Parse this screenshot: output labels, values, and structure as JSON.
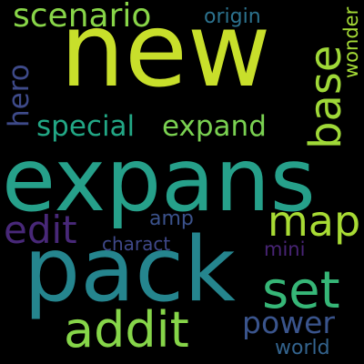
{
  "word_cloud": {
    "background": "#000000",
    "words": [
      {
        "text": "new",
        "color": "#c8df2b",
        "orientation": "horizontal"
      },
      {
        "text": "expans",
        "color": "#26a08a",
        "orientation": "horizontal"
      },
      {
        "text": "pack",
        "color": "#25858e",
        "orientation": "horizontal"
      },
      {
        "text": "base",
        "color": "#9fd838",
        "orientation": "vertical"
      },
      {
        "text": "addit",
        "color": "#86d549",
        "orientation": "horizontal"
      },
      {
        "text": "scenario",
        "color": "#88d548",
        "orientation": "horizontal"
      },
      {
        "text": "set",
        "color": "#36b677",
        "orientation": "horizontal"
      },
      {
        "text": "map",
        "color": "#a8db34",
        "orientation": "horizontal"
      },
      {
        "text": "special",
        "color": "#22a785",
        "orientation": "horizontal"
      },
      {
        "text": "expand",
        "color": "#7ad151",
        "orientation": "horizontal"
      },
      {
        "text": "hero",
        "color": "#3e4a89",
        "orientation": "vertical"
      },
      {
        "text": "edit",
        "color": "#482878",
        "orientation": "horizontal"
      },
      {
        "text": "power",
        "color": "#3a548c",
        "orientation": "horizontal"
      },
      {
        "text": "origin",
        "color": "#2c728e",
        "orientation": "horizontal"
      },
      {
        "text": "wonder",
        "color": "#a5db36",
        "orientation": "vertical"
      },
      {
        "text": "amp",
        "color": "#3b528b",
        "orientation": "horizontal"
      },
      {
        "text": "charact",
        "color": "#3f4889",
        "orientation": "horizontal"
      },
      {
        "text": "mini",
        "color": "#482475",
        "orientation": "horizontal"
      },
      {
        "text": "world",
        "color": "#33638d",
        "orientation": "horizontal"
      }
    ]
  }
}
